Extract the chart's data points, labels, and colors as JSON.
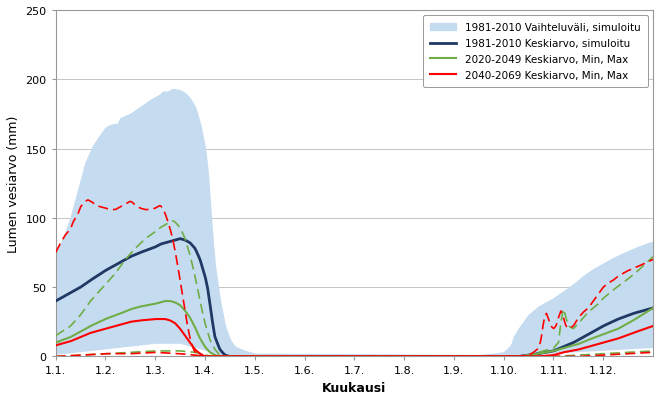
{
  "title": "",
  "xlabel": "Kuukausi",
  "ylabel": "Lumen vesiarvo (mm)",
  "ylim": [
    0,
    250
  ],
  "xlim": [
    1.0,
    13.0
  ],
  "xticks": [
    1.0,
    2.0,
    3.0,
    4.0,
    5.0,
    6.0,
    7.0,
    8.0,
    9.0,
    10.0,
    11.0,
    12.0
  ],
  "xticklabels": [
    "1.1.",
    "1.2.",
    "1.3.",
    "1.4.",
    "1.5.",
    "1.6.",
    "1.7.",
    "1.8.",
    "1.9.",
    "1.10.",
    "1.11.",
    "1.12."
  ],
  "yticks": [
    0,
    50,
    100,
    150,
    200,
    250
  ],
  "fill_color": "#C5DCF0",
  "line1981_color": "#1F3864",
  "line2020_color": "#70AD47",
  "line2040_color": "#FF0000",
  "legend_labels": [
    "1981-2010 Vaihteluväli, simuloitu",
    "1981-2010 Keskiarvo, simuloitu",
    "2020-2049 Keskiarvo, Min, Max",
    "2040-2069 Keskiarvo, Min, Max"
  ],
  "background_color": "#FFFFFF",
  "grid_color": "#BBBBBB"
}
